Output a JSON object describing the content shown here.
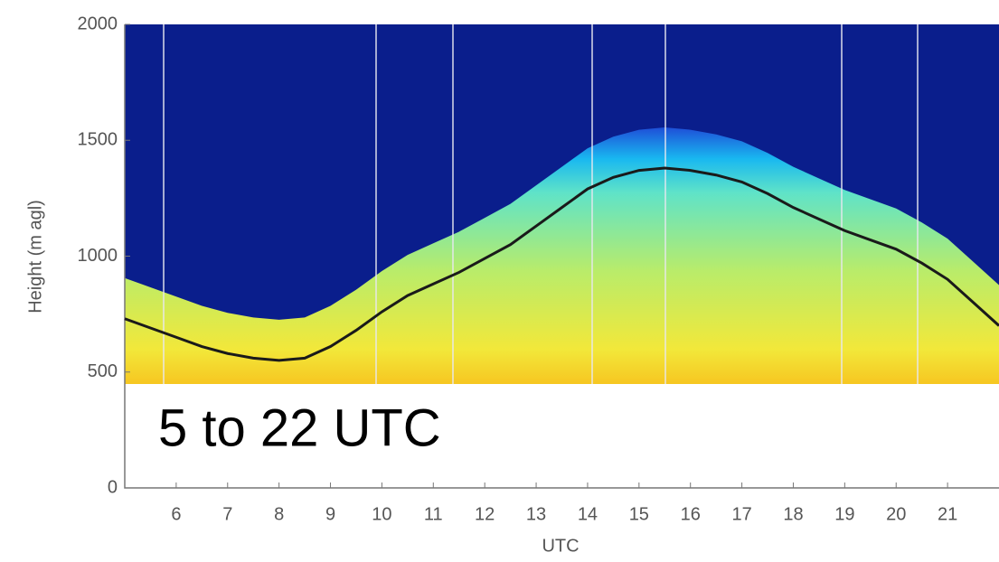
{
  "chart_data": {
    "type": "line",
    "y_label": "Height (m agl)",
    "x_label": "UTC",
    "annotation": "5 to 22 UTC",
    "x": [
      5,
      5.5,
      6,
      6.5,
      7,
      7.5,
      8,
      8.5,
      9,
      9.5,
      10,
      10.5,
      11,
      11.5,
      12,
      12.5,
      13,
      13.5,
      14,
      14.5,
      15,
      15.5,
      16,
      16.5,
      17,
      17.5,
      18,
      18.5,
      19,
      19.5,
      20,
      20.5,
      21,
      21.5,
      22
    ],
    "series": [
      {
        "color": "#1a1a1a",
        "values": [
          730,
          690,
          650,
          610,
          580,
          560,
          550,
          560,
          610,
          680,
          760,
          830,
          880,
          930,
          990,
          1050,
          1130,
          1210,
          1290,
          1340,
          1370,
          1380,
          1370,
          1350,
          1320,
          1270,
          1210,
          1160,
          1110,
          1070,
          1030,
          970,
          900,
          800,
          700
        ]
      }
    ],
    "xlim": [
      5,
      22
    ],
    "xticks": [
      6,
      7,
      8,
      9,
      10,
      11,
      12,
      13,
      14,
      15,
      16,
      17,
      18,
      19,
      20,
      21
    ],
    "ylim": [
      0,
      2000
    ],
    "yticks": [
      0,
      500,
      1000,
      1500,
      2000
    ]
  }
}
